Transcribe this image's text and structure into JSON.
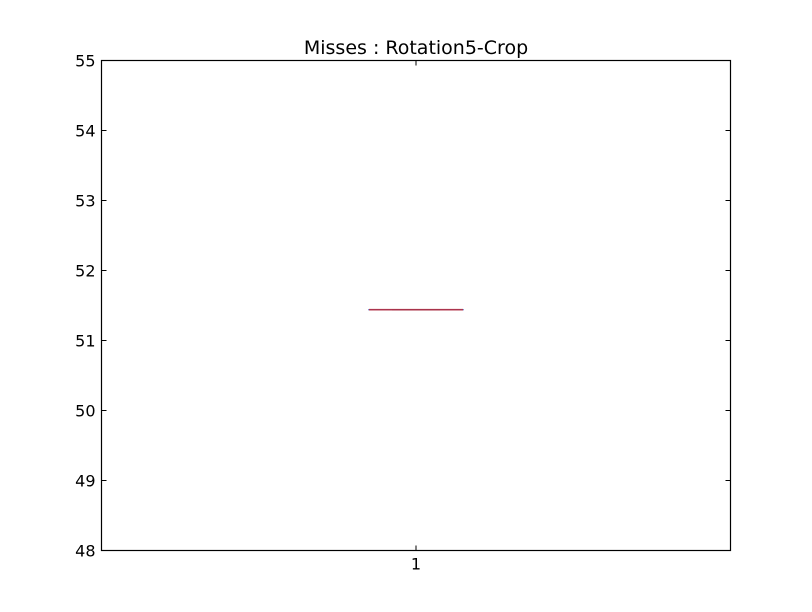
{
  "chart_data": {
    "type": "box",
    "title": "Misses : Rotation5-Crop",
    "xlabel": "",
    "ylabel": "",
    "categories": [
      "1"
    ],
    "boxes": [
      {
        "category": "1",
        "min": 51.44,
        "q1": 51.44,
        "median": 51.44,
        "q3": 51.44,
        "max": 51.44
      }
    ],
    "ylim": [
      48,
      55
    ],
    "yticks": [
      "48",
      "49",
      "50",
      "51",
      "52",
      "53",
      "54",
      "55"
    ],
    "grid": false,
    "colors": {
      "box": "#1f3fbf",
      "median": "#c0303a",
      "whisker_cap": "#000000",
      "axes": "#000000"
    }
  }
}
